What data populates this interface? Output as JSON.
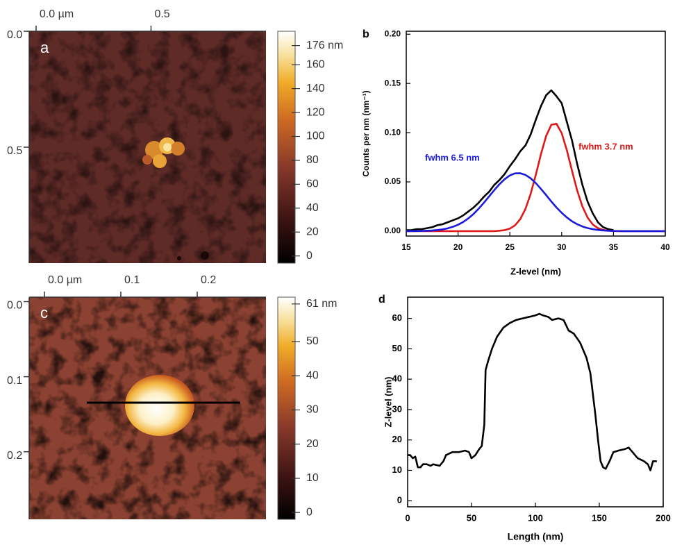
{
  "chart_data": [
    {
      "type": "image",
      "label": "a",
      "xlim": [
        -0.03,
        1.0
      ],
      "xticks": [
        {
          "value": 0,
          "label": "0.0 µm"
        },
        0.5
      ],
      "ylim": [
        0,
        1.0
      ],
      "yticks": [
        {
          "value": 0,
          "label": "0.0"
        },
        0.5
      ],
      "colorbar": {
        "lim": [
          -6,
          188
        ],
        "ticks": [
          0,
          20,
          40,
          60,
          80,
          100,
          120,
          140,
          160,
          {
            "value": 176,
            "label": "176 nm"
          }
        ]
      }
    },
    {
      "type": "line",
      "label": "b",
      "xlabel": "Z-level (nm)",
      "ylabel": "Counts per nm (nm⁻¹)",
      "xlim": [
        15,
        40
      ],
      "xticks": [
        15,
        20,
        25,
        30,
        35,
        40
      ],
      "ylim": [
        -0.005,
        0.203
      ],
      "yticks": [
        {
          "value": 0,
          "label": "0.00"
        },
        {
          "value": 0.05,
          "label": "0.05"
        },
        {
          "value": 0.1,
          "label": "0.10"
        },
        {
          "value": 0.15,
          "label": "0.15"
        },
        {
          "value": 0.2,
          "label": "0.20"
        }
      ],
      "x": [
        15,
        15.5,
        16,
        16.5,
        17,
        17.5,
        18,
        18.5,
        19,
        19.5,
        20,
        20.5,
        21,
        21.5,
        22,
        22.5,
        23,
        23.5,
        24,
        24.5,
        25,
        25.5,
        26,
        26.5,
        27,
        27.5,
        28,
        28.5,
        29,
        29.5,
        30,
        30.5,
        31,
        31.5,
        32,
        32.5,
        33,
        33.5,
        34,
        34.5,
        35,
        35.5,
        36,
        36.5,
        37,
        37.5,
        38,
        38.5,
        39,
        39.5,
        40
      ],
      "series": [
        {
          "color": "#000000",
          "values": [
            0.001,
            0.001,
            0.002,
            0.002,
            0.003,
            0.004,
            0.006,
            0.007,
            0.009,
            0.011,
            0.013,
            0.016,
            0.02,
            0.024,
            0.029,
            0.035,
            0.04,
            0.047,
            0.052,
            0.058,
            0.066,
            0.073,
            0.081,
            0.087,
            0.098,
            0.113,
            0.127,
            0.138,
            0.143,
            0.137,
            0.13,
            0.111,
            0.092,
            0.068,
            0.047,
            0.03,
            0.018,
            0.009,
            0.004,
            0.002,
            0.001,
            null,
            null,
            null,
            null,
            null,
            null,
            null,
            null,
            null,
            null
          ]
        },
        {
          "color": "#e01818",
          "values": [
            0,
            0,
            0,
            0,
            0,
            0,
            0,
            0,
            0,
            0,
            0,
            0,
            0,
            0,
            0,
            0,
            0,
            0,
            0.0004,
            0.001,
            0.0026,
            0.0059,
            0.0121,
            0.0224,
            0.0376,
            0.057,
            0.0781,
            0.0966,
            0.108,
            0.109,
            0.0996,
            0.0822,
            0.0612,
            0.0412,
            0.0251,
            0.0138,
            0.0068,
            0.0031,
            0.0012,
            0.0004,
            0.0001,
            0,
            0,
            0,
            0,
            0,
            0,
            0,
            0,
            0,
            0
          ]
        },
        {
          "color": "#1a1adc",
          "values": [
            0,
            0.0001,
            0.0001,
            0.0002,
            0.0004,
            0.0006,
            0.0011,
            0.0018,
            0.0028,
            0.0044,
            0.0065,
            0.0093,
            0.013,
            0.0175,
            0.0229,
            0.0289,
            0.0353,
            0.0417,
            0.0477,
            0.0528,
            0.0566,
            0.0587,
            0.0588,
            0.0571,
            0.0537,
            0.0488,
            0.0429,
            0.0366,
            0.0301,
            0.024,
            0.0186,
            0.0139,
            0.01,
            0.007,
            0.0047,
            0.0031,
            0.002,
            0.0012,
            0.0007,
            0.0004,
            0.0002,
            0.0001,
            0,
            0,
            0,
            0,
            0,
            0,
            0,
            0,
            0
          ]
        }
      ],
      "annotations": [
        {
          "text": "fwhm 6.5 nm",
          "color": "#1a1adc"
        },
        {
          "text": "fwhm 3.7 nm",
          "color": "#e01818"
        }
      ]
    },
    {
      "type": "image",
      "label": "c",
      "xlim": [
        -0.02,
        0.29
      ],
      "xticks": [
        {
          "value": 0,
          "label": "0.0 µm"
        },
        0.1,
        0.2
      ],
      "ylim": [
        -0.006,
        0.29
      ],
      "yticks": [
        {
          "value": 0,
          "label": "0.0"
        },
        0.1,
        0.2
      ],
      "colorbar": {
        "lim": [
          -2,
          63
        ],
        "ticks": [
          0,
          10,
          20,
          30,
          40,
          50,
          {
            "value": 61,
            "label": "61 nm"
          }
        ]
      }
    },
    {
      "type": "line",
      "label": "d",
      "xlabel": "Length (nm)",
      "ylabel": "Z-level (nm)",
      "xlim": [
        0,
        200
      ],
      "xticks": [
        0,
        50,
        100,
        150,
        200
      ],
      "ylim": [
        -2,
        67
      ],
      "yticks": [
        0,
        10,
        20,
        30,
        40,
        50,
        60
      ],
      "x": [
        0,
        2,
        4,
        6,
        8,
        10,
        12,
        15,
        18,
        20,
        25,
        28,
        30,
        35,
        40,
        45,
        48,
        50,
        53,
        56,
        58,
        60,
        61,
        63,
        66,
        70,
        75,
        80,
        85,
        90,
        95,
        100,
        103,
        106,
        110,
        113,
        118,
        122,
        126,
        130,
        135,
        140,
        143,
        145,
        147,
        149,
        151,
        153,
        155,
        158,
        161,
        165,
        170,
        173,
        176,
        180,
        185,
        188,
        190,
        192,
        195
      ],
      "series": [
        {
          "color": "#000000",
          "values": [
            15,
            15,
            14,
            14.5,
            11,
            11,
            12,
            12,
            11.5,
            12,
            11.5,
            13,
            15,
            16,
            16,
            16.5,
            16,
            14,
            15,
            17,
            18,
            25,
            43,
            46,
            50,
            54,
            57,
            58.5,
            59.5,
            60,
            60.5,
            61,
            61.5,
            61,
            60.5,
            59.5,
            60,
            59.5,
            56,
            55,
            52,
            47,
            42,
            35,
            28,
            20,
            13,
            11,
            10.5,
            13,
            16,
            16.5,
            17,
            17.5,
            16,
            14,
            13,
            12,
            10,
            13,
            13
          ]
        }
      ]
    }
  ]
}
